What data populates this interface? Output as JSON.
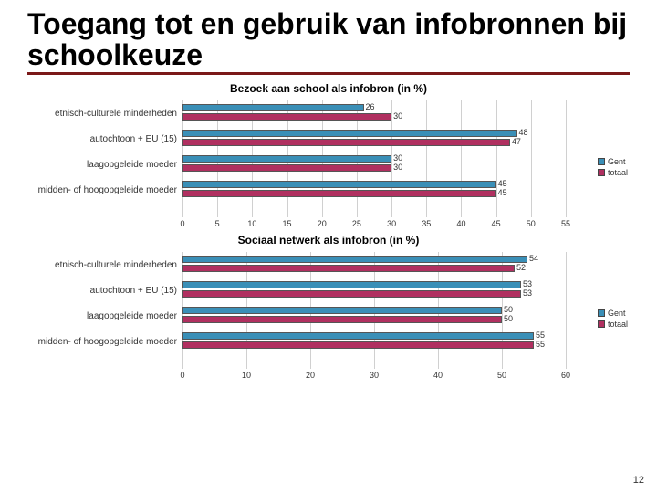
{
  "title": "Toegang tot en gebruik van infobronnen bij schoolkeuze",
  "chart1": {
    "title": "Bezoek aan school als infobron (in %)",
    "type": "bar",
    "orientation": "horizontal",
    "categories": [
      "etnisch-culturele minderheden",
      "autochtoon + EU (15)",
      "laagopgeleide moeder",
      "midden- of hoogopgeleide moeder"
    ],
    "series": [
      {
        "name": "Gent",
        "color": "#3a8fb7",
        "values": [
          26,
          48,
          30,
          45
        ]
      },
      {
        "name": "totaal",
        "color": "#b03060",
        "values": [
          30,
          47,
          30,
          45
        ]
      }
    ],
    "xlim": [
      0,
      55
    ],
    "xtick_step": 5,
    "background_color": "#ffffff",
    "grid_color": "#d0d0d0",
    "bar_border": "#555555",
    "axis_title": "Sociaal netwerk als infobron (in %)",
    "label_fontsize": 10,
    "value_fontsize": 9
  },
  "chart2": {
    "title": "Sociaal netwerk als infobron (in %)",
    "type": "bar",
    "orientation": "horizontal",
    "categories": [
      "etnisch-culturele minderheden",
      "autochtoon + EU (15)",
      "laagopgeleide moeder",
      "midden- of hoogopgeleide moeder"
    ],
    "series": [
      {
        "name": "Gent",
        "color": "#3a8fb7",
        "values": [
          54,
          53,
          50,
          55
        ]
      },
      {
        "name": "totaal",
        "color": "#b03060",
        "values": [
          52,
          53,
          50,
          55
        ]
      }
    ],
    "xlim": [
      0,
      60
    ],
    "xtick_step": 10,
    "background_color": "#ffffff",
    "grid_color": "#d0d0d0",
    "bar_border": "#555555",
    "label_fontsize": 10,
    "value_fontsize": 9
  },
  "legend": {
    "items": [
      "Gent",
      "totaal"
    ],
    "colors": [
      "#3a8fb7",
      "#b03060"
    ]
  },
  "page_number": "12"
}
